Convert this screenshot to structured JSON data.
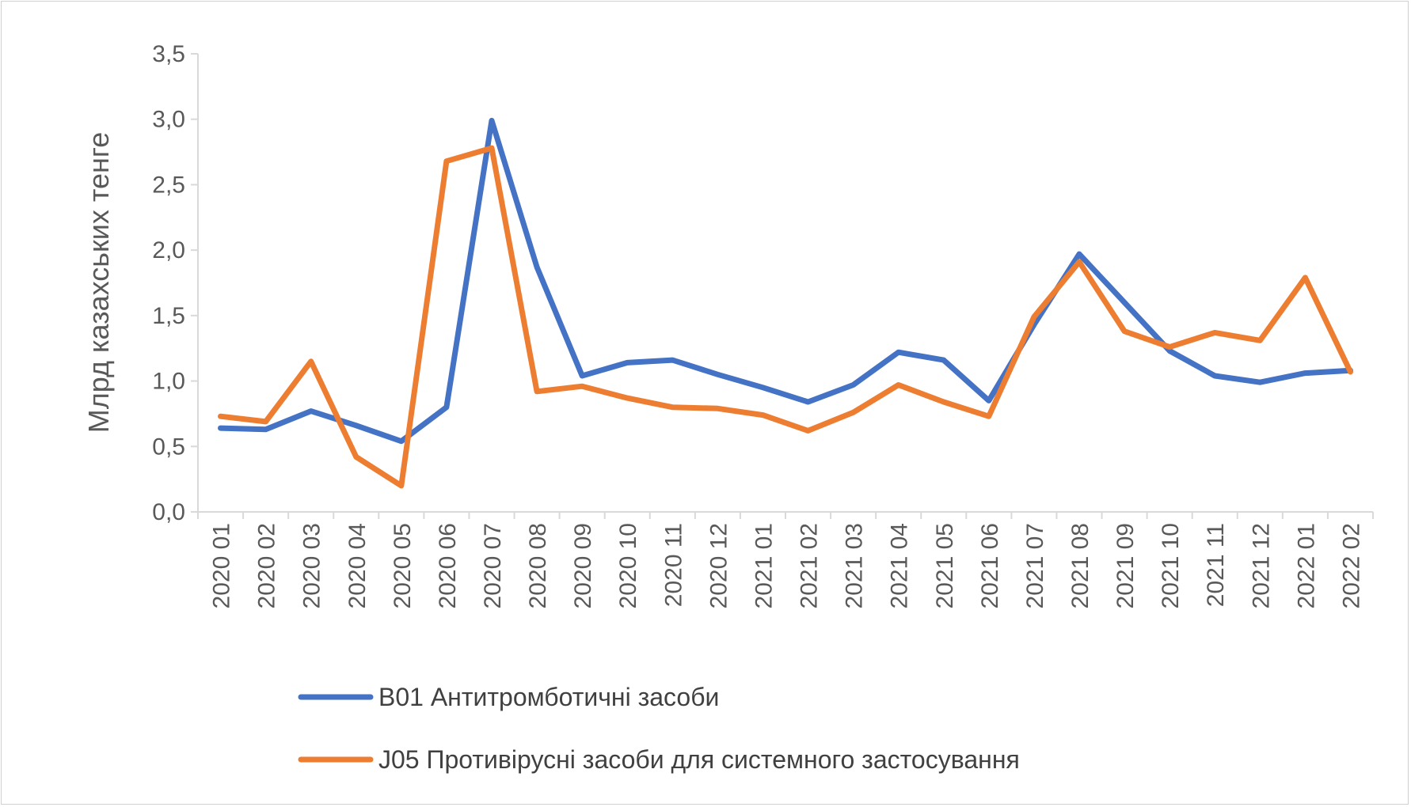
{
  "chart_data": {
    "type": "line",
    "title": "",
    "xlabel": "",
    "ylabel": "Млрд казахських тенге",
    "ylim": [
      0,
      3.5
    ],
    "y_ticks": [
      "0,0",
      "0,5",
      "1,0",
      "1,5",
      "2,0",
      "2,5",
      "3,0",
      "3,5"
    ],
    "y_tick_values": [
      0,
      0.5,
      1.0,
      1.5,
      2.0,
      2.5,
      3.0,
      3.5
    ],
    "grid": false,
    "legend_position": "bottom",
    "categories": [
      "2020 01",
      "2020 02",
      "2020 03",
      "2020 04",
      "2020 05",
      "2020 06",
      "2020 07",
      "2020 08",
      "2020 09",
      "2020 10",
      "2020 11",
      "2020 12",
      "2021 01",
      "2021 02",
      "2021 03",
      "2021 04",
      "2021 05",
      "2021 06",
      "2021 07",
      "2021 08",
      "2021 09",
      "2021 10",
      "2021 11",
      "2021 12",
      "2022 01",
      "2022 02"
    ],
    "series": [
      {
        "name": "B01 Антитромботичні засоби",
        "color": "#4472C4",
        "values": [
          0.64,
          0.63,
          0.77,
          0.66,
          0.54,
          0.8,
          2.99,
          1.87,
          1.04,
          1.14,
          1.16,
          1.05,
          0.95,
          0.84,
          0.97,
          1.22,
          1.16,
          0.85,
          1.43,
          1.97,
          1.6,
          1.23,
          1.04,
          0.99,
          1.06,
          1.08
        ]
      },
      {
        "name": "J05 Противірусні засоби для системного застосування",
        "color": "#ED7D31",
        "values": [
          0.73,
          0.69,
          1.15,
          0.42,
          0.2,
          2.68,
          2.78,
          0.92,
          0.96,
          0.87,
          0.8,
          0.79,
          0.74,
          0.62,
          0.76,
          0.97,
          0.84,
          0.73,
          1.49,
          1.91,
          1.38,
          1.26,
          1.37,
          1.31,
          1.79,
          1.07
        ]
      }
    ]
  }
}
